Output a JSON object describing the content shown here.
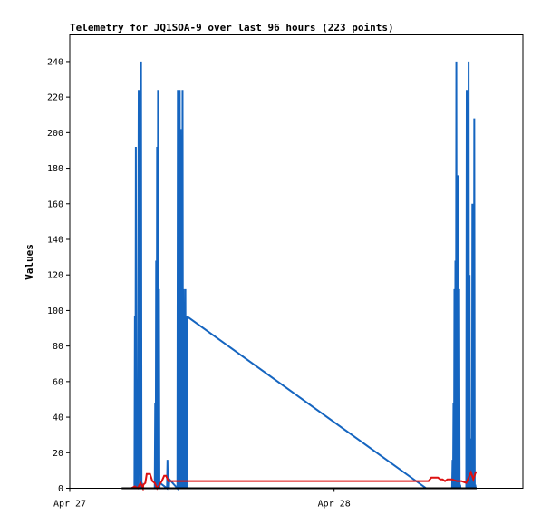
{
  "chart_data": {
    "type": "line",
    "title": "Telemetry for JQ1SOA-9 over last 96 hours (223 points)",
    "xlabel": "",
    "ylabel": "Values",
    "ylim": [
      0,
      255
    ],
    "x_range": [
      0,
      96
    ],
    "x_ticks": [
      {
        "x": 0,
        "label": "Apr 27"
      },
      {
        "x": 56,
        "label": "Apr 28"
      }
    ],
    "y_ticks": [
      0,
      20,
      40,
      60,
      80,
      100,
      120,
      140,
      160,
      180,
      200,
      220,
      240
    ],
    "grid": false,
    "series": [
      {
        "color": "#1565c0",
        "x": [
          13.7,
          13.8,
          13.9,
          14.0,
          14.1,
          14.2,
          14.4,
          14.6,
          14.8,
          14.9,
          15.0,
          15.1,
          15.2,
          15.3,
          15.4,
          18.0,
          18.1,
          18.2,
          18.3,
          18.4,
          18.5,
          18.6,
          18.7,
          18.8,
          18.9,
          19.0,
          19.1,
          20.6,
          20.7,
          20.8,
          20.9,
          21.0,
          21.1,
          22.8,
          22.9,
          23.0,
          23.1,
          23.2,
          23.3,
          23.4,
          23.5,
          23.6,
          23.7,
          23.8,
          23.9,
          24.0,
          24.1,
          24.2,
          24.3,
          24.4,
          24.5,
          24.6,
          24.7,
          24.8,
          24.9,
          25.0,
          25.1,
          25.2,
          75.5,
          81.0,
          81.1,
          81.2,
          81.3,
          81.4,
          81.5,
          81.6,
          81.7,
          81.8,
          81.9,
          82.0,
          82.1,
          82.2,
          82.3,
          82.4,
          82.5,
          82.6,
          82.7,
          82.8,
          82.9,
          84.0,
          84.1,
          84.2,
          84.3,
          84.4,
          84.5,
          84.6,
          84.7,
          84.8,
          84.9,
          85.0,
          85.1,
          85.2,
          85.3,
          85.4,
          85.5,
          85.6,
          85.7,
          85.8,
          85.9,
          86.0,
          86.1
        ],
        "values": [
          0,
          97,
          0,
          192,
          0,
          5,
          0,
          224,
          0,
          160,
          0,
          240,
          0,
          3,
          0,
          0,
          48,
          0,
          128,
          0,
          192,
          0,
          224,
          0,
          112,
          0,
          3,
          0,
          16,
          0,
          3,
          0,
          5,
          0,
          224,
          0,
          208,
          0,
          224,
          0,
          202,
          0,
          157,
          0,
          224,
          0,
          112,
          0,
          67,
          0,
          112,
          0,
          22,
          0,
          97,
          96,
          96,
          96,
          0,
          0,
          16,
          0,
          48,
          0,
          112,
          0,
          128,
          0,
          240,
          0,
          152,
          0,
          176,
          0,
          112,
          0,
          2,
          0,
          0,
          0,
          224,
          0,
          16,
          0,
          240,
          0,
          120,
          0,
          4,
          0,
          28,
          0,
          160,
          0,
          84,
          0,
          208,
          0,
          2,
          0,
          0
        ]
      },
      {
        "color": "#dd1111",
        "x": [
          13.0,
          13.8,
          14.4,
          15.0,
          15.5,
          15.6,
          16.0,
          16.3,
          16.6,
          17.0,
          17.5,
          18.0,
          18.5,
          19.0,
          19.5,
          20.0,
          20.4,
          20.9,
          21.3,
          22.0,
          30.0,
          40.0,
          50.0,
          60.0,
          70.0,
          72.0,
          76.0,
          76.6,
          77.0,
          77.6,
          78.0,
          78.5,
          79.0,
          79.5,
          80.0,
          80.5,
          81.0,
          82.0,
          83.0,
          84.0,
          84.5,
          85.0,
          85.5,
          86.0,
          86.2
        ],
        "values": [
          0,
          1,
          0,
          3,
          0,
          2,
          3,
          8,
          8,
          8,
          4,
          3,
          0,
          2,
          4,
          7,
          7,
          4,
          4,
          4,
          4,
          4,
          4,
          4,
          4,
          4,
          4,
          6,
          6,
          6,
          6,
          5,
          5,
          4,
          5,
          5,
          5,
          4,
          4,
          3,
          6,
          9,
          5,
          9,
          9
        ]
      },
      {
        "color": "#000000",
        "x": [
          11.0,
          86.2
        ],
        "values": [
          0,
          0
        ]
      }
    ]
  }
}
